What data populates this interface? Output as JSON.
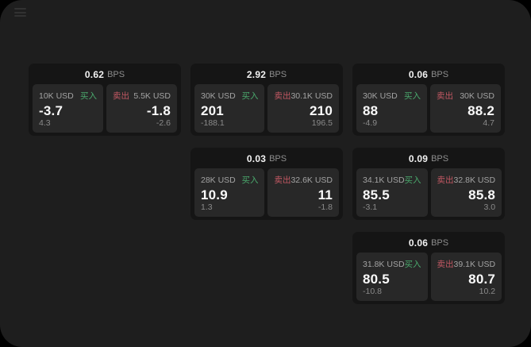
{
  "labels": {
    "bps": "BPS",
    "buy": "买入",
    "sell": "卖出"
  },
  "icons": {
    "top_left": "menu-icon"
  },
  "colors": {
    "page_bg": "#1e1e1e",
    "card_bg": "#151515",
    "panel_bg": "#282828",
    "buy_green": "#4aa96d",
    "sell_red": "#c25863",
    "price_text": "#fafafa",
    "muted_text": "#a3a3a3",
    "delta_text": "#8a8a8a"
  },
  "cards": [
    {
      "bps": "0.62",
      "buy": {
        "amount": "10K USD",
        "price": "-3.7",
        "delta": "4.3"
      },
      "sell": {
        "amount": "5.5K USD",
        "price": "-1.8",
        "delta": "-2.6"
      }
    },
    {
      "bps": "2.92",
      "buy": {
        "amount": "30K USD",
        "price": "201",
        "delta": "-188.1"
      },
      "sell": {
        "amount": "30.1K USD",
        "price": "210",
        "delta": "196.5"
      }
    },
    {
      "bps": "0.06",
      "buy": {
        "amount": "30K USD",
        "price": "88",
        "delta": "-4.9"
      },
      "sell": {
        "amount": "30K USD",
        "price": "88.2",
        "delta": "4.7"
      }
    },
    {
      "bps": "0.03",
      "buy": {
        "amount": "28K USD",
        "price": "10.9",
        "delta": "1.3"
      },
      "sell": {
        "amount": "32.6K USD",
        "price": "11",
        "delta": "-1.8"
      }
    },
    {
      "bps": "0.09",
      "buy": {
        "amount": "34.1K USD",
        "price": "85.5",
        "delta": "-3.1"
      },
      "sell": {
        "amount": "32.8K USD",
        "price": "85.8",
        "delta": "3.0"
      }
    },
    {
      "bps": "0.06",
      "buy": {
        "amount": "31.8K USD",
        "price": "80.5",
        "delta": "-10.8"
      },
      "sell": {
        "amount": "39.1K USD",
        "price": "80.7",
        "delta": "10.2"
      }
    }
  ]
}
